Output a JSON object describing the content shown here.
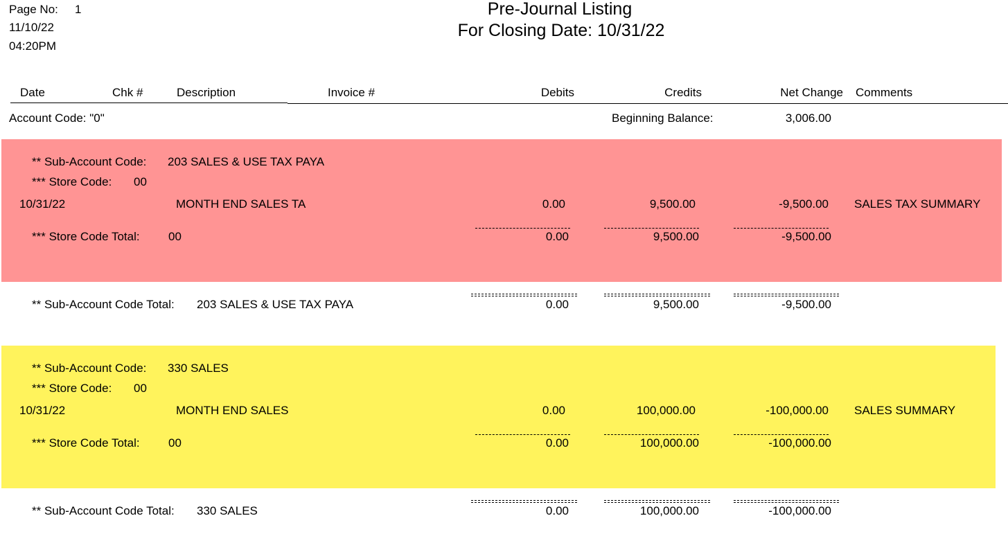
{
  "header": {
    "page_no_label": "Page No:",
    "page_no": "1",
    "date": "11/10/22",
    "time": "04:20PM",
    "title": "Pre-Journal Listing",
    "subtitle": "For Closing Date: 10/31/22"
  },
  "columns": [
    "Date",
    "Chk #",
    "Description",
    "Invoice #",
    "Debits",
    "Credits",
    "Net Change",
    "Comments"
  ],
  "account": {
    "label": "Account Code: \"0\"",
    "beginning_balance_label": "Beginning Balance:",
    "beginning_balance": "3,006.00"
  },
  "sections": [
    {
      "color": "#ff9494",
      "sub_account_label": "** Sub-Account Code:",
      "sub_account": "203 SALES & USE TAX PAYA",
      "store_label": "*** Store Code:",
      "store": "00",
      "entry": {
        "date": "10/31/22",
        "description": "MONTH END SALES TA",
        "debits": "0.00",
        "credits": "9,500.00",
        "net_change": "-9,500.00",
        "comment": "SALES TAX SUMMARY"
      },
      "store_total_label": "*** Store Code Total:",
      "store_total_code": "00",
      "store_total": {
        "debits": "0.00",
        "credits": "9,500.00",
        "net_change": "-9,500.00"
      },
      "sub_total_label": "** Sub-Account Code Total:",
      "sub_total_name": "203 SALES & USE TAX PAYA",
      "sub_total": {
        "debits": "0.00",
        "credits": "9,500.00",
        "net_change": "-9,500.00"
      }
    },
    {
      "color": "#fff35c",
      "sub_account_label": "** Sub-Account Code:",
      "sub_account": "330 SALES",
      "store_label": "*** Store Code:",
      "store": "00",
      "entry": {
        "date": "10/31/22",
        "description": "MONTH END SALES",
        "debits": "0.00",
        "credits": "100,000.00",
        "net_change": "-100,000.00",
        "comment": "SALES SUMMARY"
      },
      "store_total_label": "*** Store Code Total:",
      "store_total_code": "00",
      "store_total": {
        "debits": "0.00",
        "credits": "100,000.00",
        "net_change": "-100,000.00"
      },
      "sub_total_label": "** Sub-Account Code Total:",
      "sub_total_name": "330 SALES",
      "sub_total": {
        "debits": "0.00",
        "credits": "100,000.00",
        "net_change": "-100,000.00"
      }
    }
  ]
}
